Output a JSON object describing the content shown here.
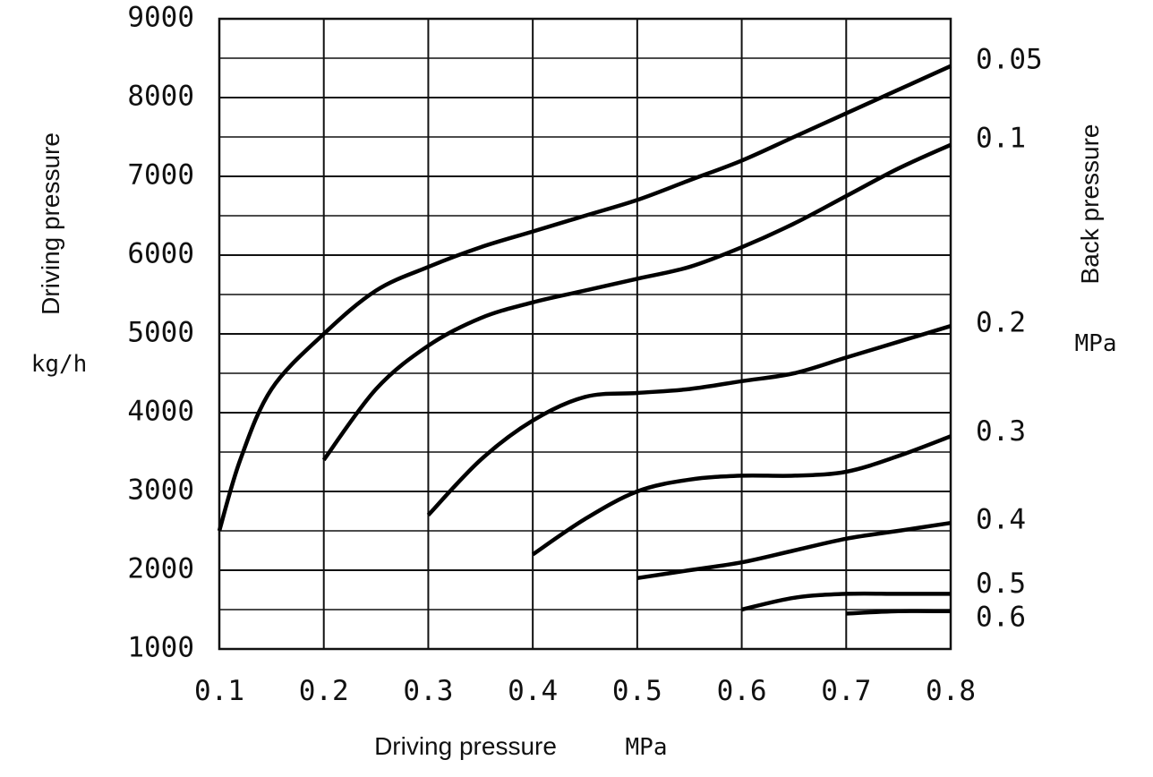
{
  "chart_data": {
    "type": "line",
    "title": "",
    "xlabel": "Driving pressure",
    "xunit": "MPa",
    "ylabel": "Driving pressure",
    "yunit": "kg/h",
    "right_label": "Back pressure",
    "right_unit": "MPa",
    "xlim": [
      0.1,
      0.8
    ],
    "ylim": [
      1000,
      9000
    ],
    "grid": true,
    "x_ticks": [
      "0.1",
      "0.2",
      "0.3",
      "0.4",
      "0.5",
      "0.6",
      "0.7",
      "0.8"
    ],
    "y_ticks": [
      "1000",
      "2000",
      "3000",
      "4000",
      "5000",
      "6000",
      "7000",
      "8000",
      "9000"
    ],
    "series": [
      {
        "name": "0.05",
        "points": [
          [
            0.1,
            2500
          ],
          [
            0.12,
            3400
          ],
          [
            0.15,
            4300
          ],
          [
            0.2,
            5000
          ],
          [
            0.25,
            5550
          ],
          [
            0.3,
            5850
          ],
          [
            0.35,
            6100
          ],
          [
            0.4,
            6300
          ],
          [
            0.45,
            6500
          ],
          [
            0.5,
            6700
          ],
          [
            0.55,
            6950
          ],
          [
            0.6,
            7200
          ],
          [
            0.65,
            7500
          ],
          [
            0.7,
            7800
          ],
          [
            0.75,
            8100
          ],
          [
            0.8,
            8400
          ]
        ]
      },
      {
        "name": "0.1",
        "points": [
          [
            0.2,
            3400
          ],
          [
            0.25,
            4300
          ],
          [
            0.3,
            4850
          ],
          [
            0.35,
            5200
          ],
          [
            0.4,
            5400
          ],
          [
            0.45,
            5550
          ],
          [
            0.5,
            5700
          ],
          [
            0.55,
            5850
          ],
          [
            0.6,
            6100
          ],
          [
            0.65,
            6400
          ],
          [
            0.7,
            6750
          ],
          [
            0.75,
            7100
          ],
          [
            0.8,
            7400
          ]
        ]
      },
      {
        "name": "0.2",
        "points": [
          [
            0.3,
            2700
          ],
          [
            0.35,
            3400
          ],
          [
            0.4,
            3900
          ],
          [
            0.45,
            4200
          ],
          [
            0.5,
            4250
          ],
          [
            0.55,
            4300
          ],
          [
            0.6,
            4400
          ],
          [
            0.65,
            4500
          ],
          [
            0.7,
            4700
          ],
          [
            0.75,
            4900
          ],
          [
            0.8,
            5100
          ]
        ]
      },
      {
        "name": "0.3",
        "points": [
          [
            0.4,
            2200
          ],
          [
            0.45,
            2650
          ],
          [
            0.5,
            3000
          ],
          [
            0.55,
            3150
          ],
          [
            0.6,
            3200
          ],
          [
            0.65,
            3200
          ],
          [
            0.7,
            3250
          ],
          [
            0.75,
            3450
          ],
          [
            0.8,
            3700
          ]
        ]
      },
      {
        "name": "0.4",
        "points": [
          [
            0.5,
            1900
          ],
          [
            0.55,
            2000
          ],
          [
            0.6,
            2100
          ],
          [
            0.65,
            2250
          ],
          [
            0.7,
            2400
          ],
          [
            0.75,
            2500
          ],
          [
            0.8,
            2600
          ]
        ]
      },
      {
        "name": "0.5",
        "points": [
          [
            0.6,
            1500
          ],
          [
            0.65,
            1650
          ],
          [
            0.7,
            1700
          ],
          [
            0.75,
            1700
          ],
          [
            0.8,
            1700
          ]
        ]
      },
      {
        "name": "0.6",
        "points": [
          [
            0.7,
            1450
          ],
          [
            0.75,
            1480
          ],
          [
            0.8,
            1480
          ]
        ]
      }
    ]
  }
}
